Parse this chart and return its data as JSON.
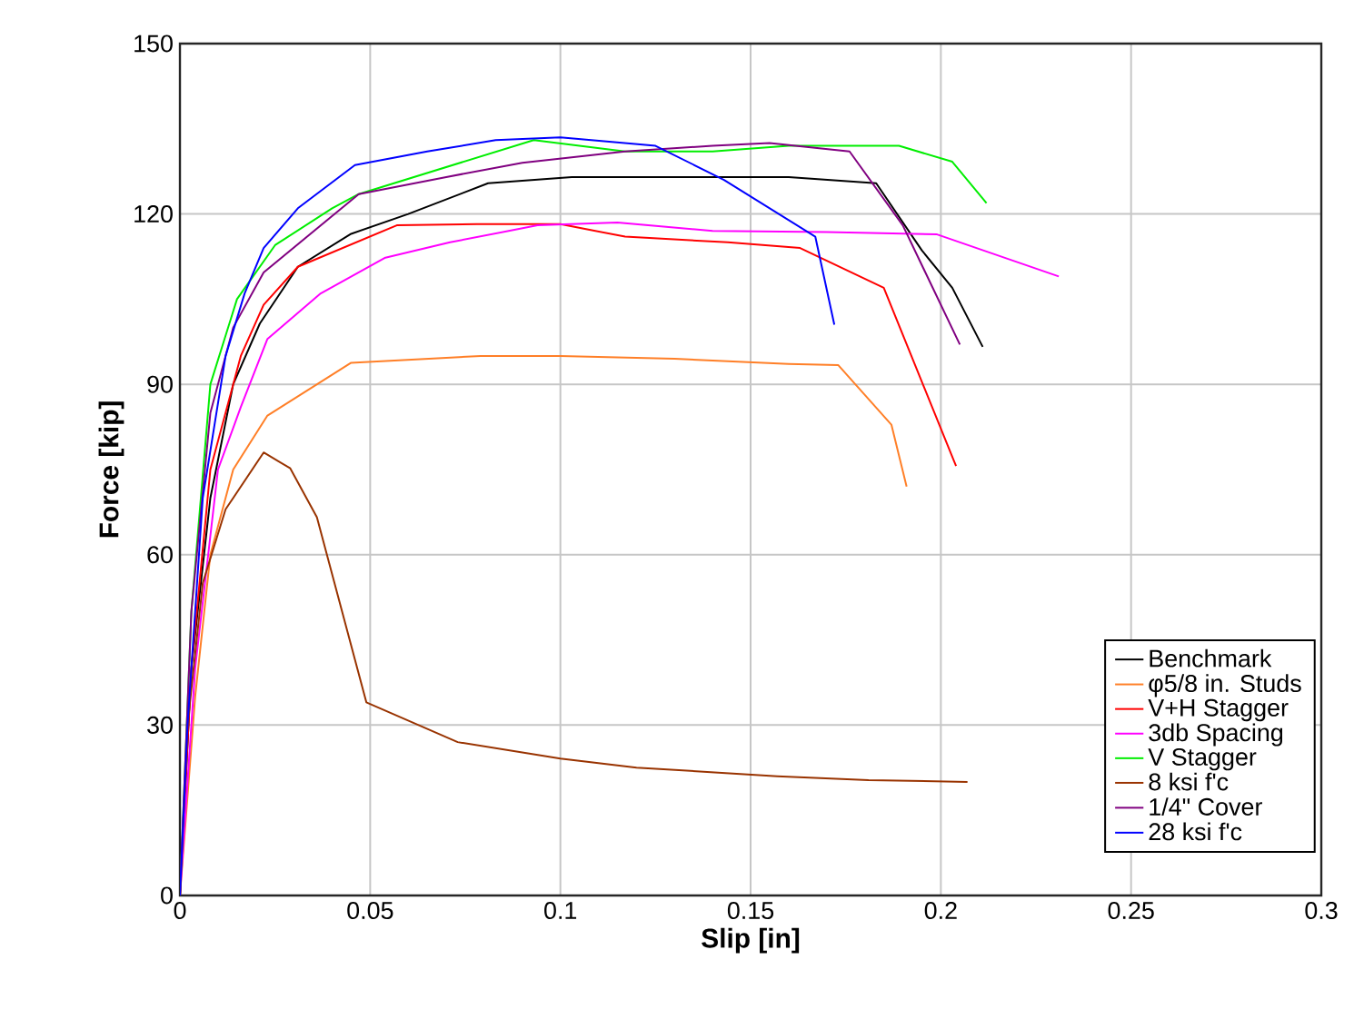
{
  "chart_data": {
    "type": "line",
    "xlabel": "Slip [in]",
    "ylabel": "Force [kip]",
    "xlim": [
      0,
      0.3
    ],
    "ylim": [
      0,
      150
    ],
    "xticks": [
      0,
      0.05,
      0.1,
      0.15,
      0.2,
      0.25,
      0.3
    ],
    "yticks": [
      0,
      30,
      60,
      90,
      120,
      150
    ],
    "grid": true,
    "legend": "bottom right",
    "line_style": "solid",
    "marker": "none",
    "series": [
      {
        "name": "Benchmark",
        "color": "#000000",
        "x": [
          0,
          0.003,
          0.008,
          0.014,
          0.021,
          0.031,
          0.045,
          0.06,
          0.081,
          0.103,
          0.13,
          0.16,
          0.183,
          0.195,
          0.203,
          0.211
        ],
        "values": [
          0,
          40,
          70,
          90,
          100.7,
          110.7,
          116.5,
          120,
          125.4,
          126.5,
          126.5,
          126.5,
          125.4,
          113.6,
          107,
          96.6
        ]
      },
      {
        "name": "φ5/8 in. Studs",
        "color": "#ff7f27",
        "x": [
          0,
          0.004,
          0.008,
          0.014,
          0.023,
          0.045,
          0.079,
          0.1,
          0.13,
          0.16,
          0.173,
          0.187,
          0.191
        ],
        "values": [
          0,
          35,
          60,
          75,
          84.5,
          93.8,
          95,
          95,
          94.5,
          93.6,
          93.4,
          82.9,
          72
        ]
      },
      {
        "name": "V+H Stagger",
        "color": "#ff0000",
        "x": [
          0,
          0.003,
          0.008,
          0.016,
          0.022,
          0.031,
          0.057,
          0.078,
          0.1,
          0.117,
          0.144,
          0.163,
          0.185,
          0.204
        ],
        "values": [
          0,
          40,
          75,
          95,
          104,
          110.7,
          118,
          118.2,
          118.2,
          116,
          115,
          114,
          107,
          75.6
        ]
      },
      {
        "name": "3db Spacing",
        "color": "#ff00ff",
        "x": [
          0,
          0.004,
          0.01,
          0.016,
          0.023,
          0.037,
          0.054,
          0.071,
          0.094,
          0.115,
          0.14,
          0.17,
          0.199,
          0.231
        ],
        "values": [
          0,
          40,
          75,
          86,
          98,
          106,
          112.3,
          115,
          118,
          118.5,
          117,
          116.8,
          116.4,
          109
        ]
      },
      {
        "name": "V Stagger",
        "color": "#00ee00",
        "x": [
          0,
          0.003,
          0.008,
          0.015,
          0.025,
          0.04,
          0.047,
          0.093,
          0.117,
          0.14,
          0.16,
          0.189,
          0.203,
          0.212
        ],
        "values": [
          0,
          50,
          90,
          105,
          114.5,
          121,
          123.5,
          133,
          131,
          131,
          132,
          132,
          129.2,
          121.9
        ]
      },
      {
        "name": "8 ksi f'c",
        "color": "#993300",
        "x": [
          0,
          0.002,
          0.006,
          0.012,
          0.022,
          0.029,
          0.036,
          0.049,
          0.073,
          0.1,
          0.12,
          0.157,
          0.181,
          0.207
        ],
        "values": [
          0,
          30,
          55,
          68,
          78,
          75.2,
          66.6,
          34,
          27,
          24.1,
          22.5,
          21,
          20.3,
          20
        ]
      },
      {
        "name": "1/4\" Cover",
        "color": "#800080",
        "x": [
          0,
          0.003,
          0.008,
          0.014,
          0.022,
          0.047,
          0.07,
          0.09,
          0.117,
          0.14,
          0.155,
          0.176,
          0.19,
          0.205
        ],
        "values": [
          0,
          50,
          85,
          100,
          109.7,
          123.5,
          126.5,
          129,
          131,
          132,
          132.5,
          131,
          118,
          97
        ]
      },
      {
        "name": "28 ksi f'c",
        "color": "#0000ff",
        "x": [
          0,
          0.002,
          0.006,
          0.012,
          0.017,
          0.022,
          0.031,
          0.046,
          0.065,
          0.083,
          0.1,
          0.125,
          0.143,
          0.167,
          0.172
        ],
        "values": [
          0,
          30,
          70,
          95,
          106,
          114,
          121,
          128.6,
          131,
          133,
          133.5,
          132,
          126,
          116,
          100.5
        ]
      }
    ]
  }
}
